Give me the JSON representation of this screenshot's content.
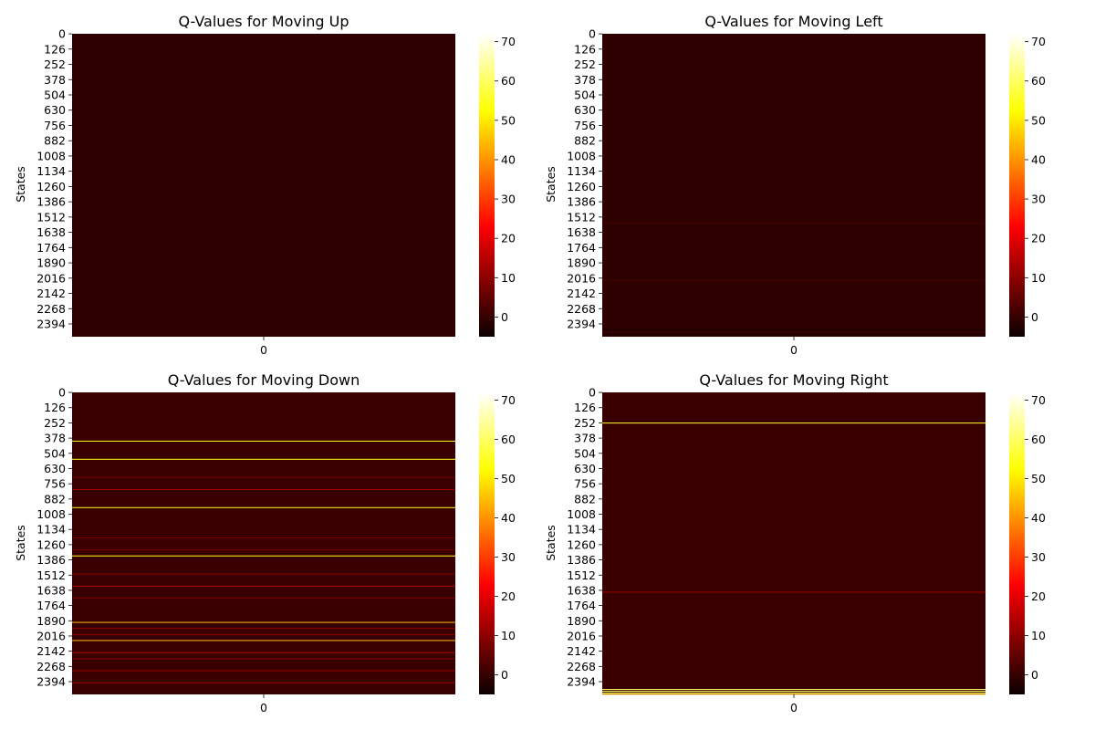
{
  "chart_data": [
    {
      "type": "heatmap",
      "title": "Q-Values for Moving Up",
      "ylabel": "States",
      "xlabel": "",
      "x_ticks": [
        "0"
      ],
      "y_ticks": [
        "0",
        "126",
        "252",
        "378",
        "504",
        "630",
        "756",
        "882",
        "1008",
        "1134",
        "1260",
        "1386",
        "1512",
        "1638",
        "1764",
        "1890",
        "2016",
        "2142",
        "2268",
        "2394"
      ],
      "n_states": 2500,
      "colorbar": {
        "min": -5,
        "max": 72,
        "ticks": [
          "0",
          "10",
          "20",
          "30",
          "40",
          "50",
          "60",
          "70"
        ],
        "cmap": "hot"
      },
      "base_value": -1,
      "highlights": []
    },
    {
      "type": "heatmap",
      "title": "Q-Values for Moving Left",
      "ylabel": "States",
      "xlabel": "",
      "x_ticks": [
        "0"
      ],
      "y_ticks": [
        "0",
        "126",
        "252",
        "378",
        "504",
        "630",
        "756",
        "882",
        "1008",
        "1134",
        "1260",
        "1386",
        "1512",
        "1638",
        "1764",
        "1890",
        "2016",
        "2142",
        "2268",
        "2394"
      ],
      "n_states": 2500,
      "colorbar": {
        "min": -5,
        "max": 72,
        "ticks": [
          "0",
          "10",
          "20",
          "30",
          "40",
          "50",
          "60",
          "70"
        ],
        "cmap": "hot"
      },
      "base_value": -1,
      "highlights": [
        {
          "state": 1560,
          "value": 1
        },
        {
          "state": 2030,
          "value": 1
        },
        {
          "state": 2440,
          "value": -4
        },
        {
          "state": 2480,
          "value": -4
        }
      ]
    },
    {
      "type": "heatmap",
      "title": "Q-Values for Moving Down",
      "ylabel": "States",
      "xlabel": "",
      "x_ticks": [
        "0"
      ],
      "y_ticks": [
        "0",
        "126",
        "252",
        "378",
        "504",
        "630",
        "756",
        "882",
        "1008",
        "1134",
        "1260",
        "1386",
        "1512",
        "1638",
        "1764",
        "1890",
        "2016",
        "2142",
        "2268",
        "2394"
      ],
      "n_states": 2500,
      "colorbar": {
        "min": -5,
        "max": 72,
        "ticks": [
          "0",
          "10",
          "20",
          "30",
          "40",
          "50",
          "60",
          "70"
        ],
        "cmap": "hot"
      },
      "base_value": 0,
      "highlights": [
        {
          "state": 400,
          "value": 55
        },
        {
          "state": 550,
          "value": 55
        },
        {
          "state": 700,
          "value": 8
        },
        {
          "state": 800,
          "value": 12
        },
        {
          "state": 950,
          "value": 55
        },
        {
          "state": 1200,
          "value": 8
        },
        {
          "state": 1300,
          "value": 8
        },
        {
          "state": 1350,
          "value": 55
        },
        {
          "state": 1500,
          "value": 10
        },
        {
          "state": 1600,
          "value": 15
        },
        {
          "state": 1700,
          "value": 8
        },
        {
          "state": 1900,
          "value": 45
        },
        {
          "state": 1950,
          "value": 10
        },
        {
          "state": 2000,
          "value": 10
        },
        {
          "state": 2050,
          "value": 45
        },
        {
          "state": 2150,
          "value": 15
        },
        {
          "state": 2200,
          "value": 8
        },
        {
          "state": 2300,
          "value": 12
        },
        {
          "state": 2400,
          "value": 12
        }
      ]
    },
    {
      "type": "heatmap",
      "title": "Q-Values for Moving Right",
      "ylabel": "States",
      "xlabel": "",
      "x_ticks": [
        "0"
      ],
      "y_ticks": [
        "0",
        "126",
        "252",
        "378",
        "504",
        "630",
        "756",
        "882",
        "1008",
        "1134",
        "1260",
        "1386",
        "1512",
        "1638",
        "1764",
        "1890",
        "2016",
        "2142",
        "2268",
        "2394"
      ],
      "n_states": 2500,
      "colorbar": {
        "min": -5,
        "max": 72,
        "ticks": [
          "0",
          "10",
          "20",
          "30",
          "40",
          "50",
          "60",
          "70"
        ],
        "cmap": "hot"
      },
      "base_value": 0,
      "highlights": [
        {
          "state": 250,
          "value": 55
        },
        {
          "state": 1650,
          "value": 12
        },
        {
          "state": 2455,
          "value": 60
        },
        {
          "state": 2470,
          "value": 60
        },
        {
          "state": 2485,
          "value": 60
        },
        {
          "state": 2495,
          "value": 45
        }
      ]
    }
  ]
}
